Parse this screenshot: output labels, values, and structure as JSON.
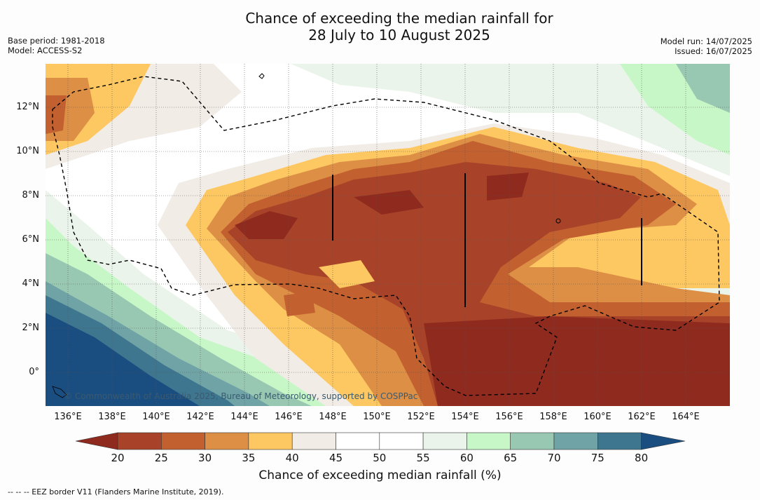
{
  "title_line1": "Chance of exceeding the median rainfall for",
  "title_line2": "28 July to 10 August 2025",
  "base_period": "Base period: 1981-2018",
  "model": "Model: ACCESS-S2",
  "model_run": "Model run: 14/07/2025",
  "issued": "Issued: 16/07/2025",
  "copyright": "© Commonwealth of Australia 2025, Bureau of Meteorology, supported by COSPPac",
  "lat_labels": [
    "12°N",
    "10°N",
    "8°N",
    "6°N",
    "4°N",
    "2°N",
    "0°"
  ],
  "lon_labels": [
    "136°E",
    "138°E",
    "140°E",
    "142°E",
    "144°E",
    "146°E",
    "148°E",
    "150°E",
    "152°E",
    "154°E",
    "156°E",
    "158°E",
    "160°E",
    "162°E",
    "164°E"
  ],
  "colorbar": {
    "ticks": [
      "20",
      "25",
      "30",
      "35",
      "40",
      "45",
      "50",
      "55",
      "60",
      "65",
      "70",
      "75",
      "80"
    ],
    "colors": [
      "#8f2a1e",
      "#a8432a",
      "#c2612f",
      "#dd8f45",
      "#fdc761",
      "#f1ece6",
      "#ffffff",
      "#ffffff",
      "#eaf4ea",
      "#c7f7c7",
      "#98c7b2",
      "#6fa3a6",
      "#3f768f",
      "#1a4d80"
    ],
    "title": "Chance of exceeding median rainfall (%)"
  },
  "footer": "--  --  -- EEZ border V11 (Flanders Marine Institute, 2019)."
}
